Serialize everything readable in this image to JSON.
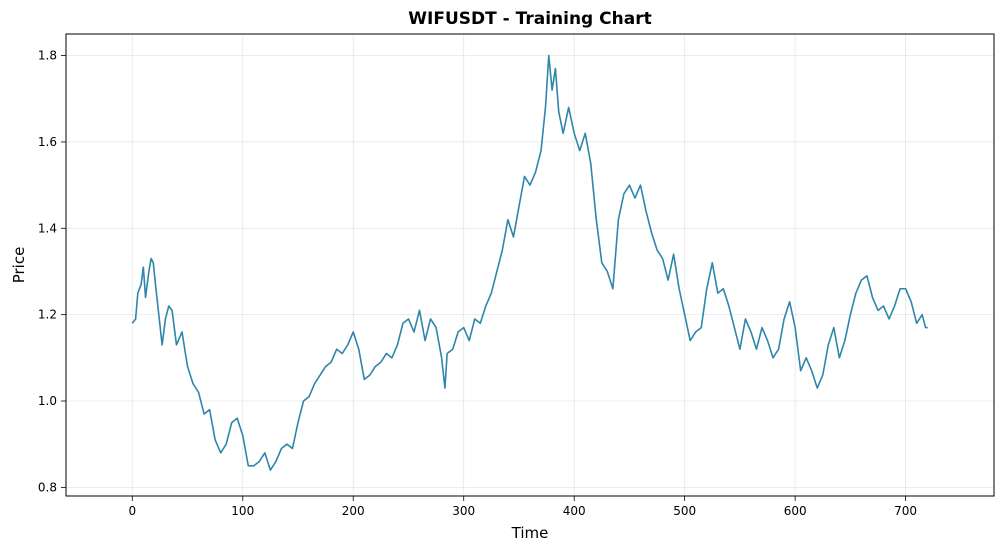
{
  "chart_data": {
    "type": "line",
    "title": "WIFUSDT - Training Chart",
    "xlabel": "Time",
    "ylabel": "Price",
    "xlim": [
      -60,
      780
    ],
    "ylim": [
      0.78,
      1.85
    ],
    "xticks": [
      0,
      100,
      200,
      300,
      400,
      500,
      600,
      700
    ],
    "yticks": [
      0.8,
      1.0,
      1.2,
      1.4,
      1.6,
      1.8
    ],
    "ytick_labels": [
      "0.8",
      "1.0",
      "1.2",
      "1.4",
      "1.6",
      "1.8"
    ],
    "grid": true,
    "line_color": "#2E86AB",
    "series": [
      {
        "x": [
          0,
          3,
          5,
          8,
          10,
          12,
          15,
          17,
          19,
          21,
          24,
          27,
          30,
          33,
          36,
          40,
          45,
          50,
          55,
          60,
          65,
          70,
          75,
          80,
          85,
          90,
          95,
          100,
          105,
          110,
          115,
          120,
          125,
          130,
          135,
          140,
          145,
          150,
          155,
          160,
          165,
          170,
          175,
          180,
          185,
          190,
          195,
          200,
          205,
          210,
          215,
          220,
          225,
          230,
          235,
          240,
          245,
          250,
          255,
          260,
          265,
          270,
          275,
          280,
          283,
          285,
          290,
          295,
          300,
          305,
          310,
          315,
          320,
          325,
          330,
          335,
          340,
          345,
          350,
          355,
          360,
          365,
          370,
          374,
          377,
          380,
          383,
          386,
          390,
          395,
          400,
          405,
          410,
          415,
          420,
          425,
          430,
          435,
          440,
          445,
          450,
          455,
          460,
          465,
          470,
          475,
          480,
          485,
          490,
          495,
          500,
          505,
          510,
          515,
          520,
          525,
          530,
          535,
          540,
          545,
          550,
          555,
          560,
          565,
          570,
          575,
          580,
          585,
          590,
          595,
          600,
          605,
          610,
          615,
          620,
          625,
          630,
          635,
          640,
          645,
          650,
          655,
          660,
          665,
          670,
          675,
          680,
          685,
          690,
          695,
          700,
          705,
          710,
          715,
          718,
          720
        ],
        "y": [
          1.18,
          1.19,
          1.25,
          1.27,
          1.31,
          1.24,
          1.3,
          1.33,
          1.32,
          1.27,
          1.2,
          1.13,
          1.19,
          1.22,
          1.21,
          1.13,
          1.16,
          1.08,
          1.04,
          1.02,
          0.97,
          0.98,
          0.91,
          0.88,
          0.9,
          0.95,
          0.96,
          0.92,
          0.85,
          0.85,
          0.86,
          0.88,
          0.84,
          0.86,
          0.89,
          0.9,
          0.89,
          0.95,
          1.0,
          1.01,
          1.04,
          1.06,
          1.08,
          1.09,
          1.12,
          1.11,
          1.13,
          1.16,
          1.12,
          1.05,
          1.06,
          1.08,
          1.09,
          1.11,
          1.1,
          1.13,
          1.18,
          1.19,
          1.16,
          1.21,
          1.14,
          1.19,
          1.17,
          1.1,
          1.03,
          1.11,
          1.12,
          1.16,
          1.17,
          1.14,
          1.19,
          1.18,
          1.22,
          1.25,
          1.3,
          1.35,
          1.42,
          1.38,
          1.45,
          1.52,
          1.5,
          1.53,
          1.58,
          1.68,
          1.8,
          1.72,
          1.77,
          1.67,
          1.62,
          1.68,
          1.62,
          1.58,
          1.62,
          1.55,
          1.42,
          1.32,
          1.3,
          1.26,
          1.42,
          1.48,
          1.5,
          1.47,
          1.5,
          1.44,
          1.39,
          1.35,
          1.33,
          1.28,
          1.34,
          1.26,
          1.2,
          1.14,
          1.16,
          1.17,
          1.26,
          1.32,
          1.25,
          1.26,
          1.22,
          1.17,
          1.12,
          1.19,
          1.16,
          1.12,
          1.17,
          1.14,
          1.1,
          1.12,
          1.19,
          1.23,
          1.17,
          1.07,
          1.1,
          1.07,
          1.03,
          1.06,
          1.13,
          1.17,
          1.1,
          1.14,
          1.2,
          1.25,
          1.28,
          1.29,
          1.24,
          1.21,
          1.22,
          1.19,
          1.22,
          1.26,
          1.26,
          1.23,
          1.18,
          1.2,
          1.17,
          1.17
        ]
      }
    ]
  }
}
